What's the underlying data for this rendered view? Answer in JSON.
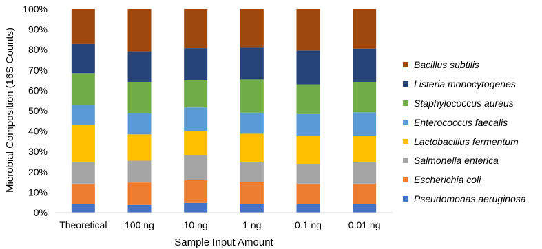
{
  "chart_data": {
    "type": "bar",
    "stacked": true,
    "percent": true,
    "title": "",
    "xlabel": "Sample Input Amount",
    "ylabel": "Microbial Composition (16S Counts)",
    "ylim": [
      0,
      100
    ],
    "yticks": [
      "0%",
      "10%",
      "20%",
      "30%",
      "40%",
      "50%",
      "60%",
      "70%",
      "80%",
      "90%",
      "100%"
    ],
    "categories": [
      "Theoretical",
      "100 ng",
      "10 ng",
      "1 ng",
      "0.1 ng",
      "0.01 ng"
    ],
    "legend_position": "right",
    "grid": false,
    "series": [
      {
        "name": "Pseudomonas aeruginosa",
        "color": "#4472C4",
        "values": [
          4.2,
          3.8,
          4.8,
          4.2,
          4.2,
          4.2
        ]
      },
      {
        "name": "Escherichia coli",
        "color": "#ED7D31",
        "values": [
          10.1,
          11.0,
          11.2,
          10.7,
          10.1,
          10.1
        ]
      },
      {
        "name": "Salmonella enterica",
        "color": "#A5A5A5",
        "values": [
          10.4,
          10.7,
          12.2,
          10.1,
          9.5,
          10.4
        ]
      },
      {
        "name": "Lactobacillus fermentum",
        "color": "#FFC000",
        "values": [
          18.4,
          12.9,
          12.0,
          13.7,
          13.7,
          13.1
        ]
      },
      {
        "name": "Enterococcus faecalis",
        "color": "#5B9BD5",
        "values": [
          9.9,
          10.6,
          11.4,
          10.4,
          10.9,
          11.4
        ]
      },
      {
        "name": "Staphylococcus aureus",
        "color": "#70AD47",
        "values": [
          15.5,
          15.2,
          13.3,
          16.3,
          14.6,
          15.0
        ]
      },
      {
        "name": "Listeria monocytogenes",
        "color": "#264478",
        "values": [
          14.3,
          15.0,
          15.8,
          15.5,
          16.6,
          16.3
        ]
      },
      {
        "name": "Bacillus subtilis",
        "color": "#9E480E",
        "values": [
          17.2,
          20.8,
          19.3,
          19.1,
          20.4,
          19.5
        ]
      }
    ]
  }
}
